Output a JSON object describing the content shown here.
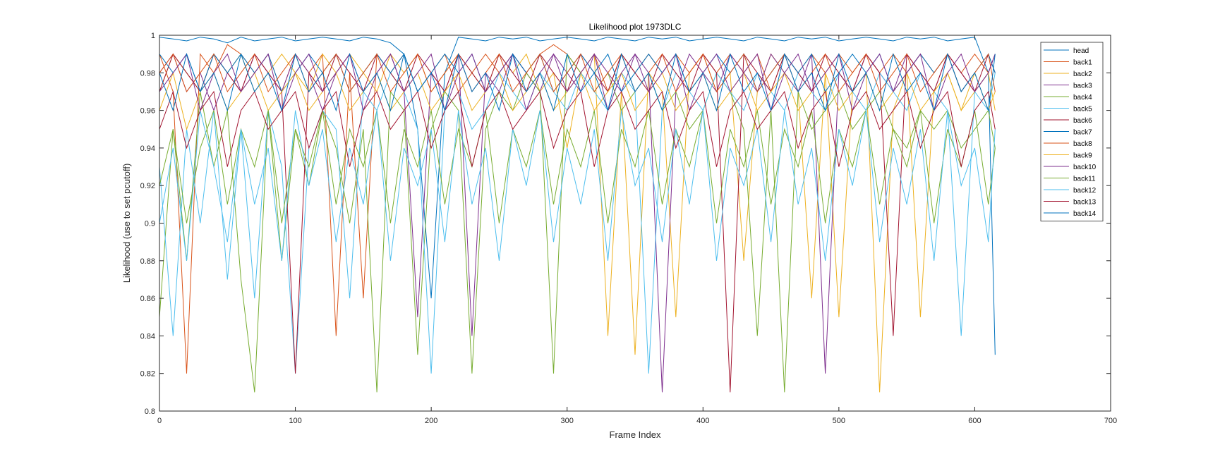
{
  "chart_data": {
    "type": "line",
    "title": "Likelihood plot 1973DLC",
    "xlabel": "Frame Index",
    "ylabel": "Likelihood (use to set pcutoff)",
    "xlim": [
      0,
      700
    ],
    "ylim": [
      0.8,
      1
    ],
    "xticks": [
      "0",
      "100",
      "200",
      "300",
      "400",
      "500",
      "600",
      "700"
    ],
    "yticks": [
      "0.8",
      "0.82",
      "0.84",
      "0.86",
      "0.88",
      "0.9",
      "0.92",
      "0.94",
      "0.96",
      "0.98",
      "1"
    ],
    "legend_position": "top-right",
    "grid": false,
    "x": [
      0,
      10,
      20,
      30,
      40,
      50,
      60,
      70,
      80,
      90,
      100,
      110,
      120,
      130,
      140,
      150,
      160,
      170,
      180,
      190,
      200,
      210,
      220,
      230,
      240,
      250,
      260,
      270,
      280,
      290,
      300,
      310,
      320,
      330,
      340,
      350,
      360,
      370,
      380,
      390,
      400,
      410,
      420,
      430,
      440,
      450,
      460,
      470,
      480,
      490,
      500,
      510,
      520,
      530,
      540,
      550,
      560,
      570,
      580,
      590,
      600,
      610,
      615
    ],
    "series": [
      {
        "name": "head",
        "color": "#0072BD",
        "values": [
          0.999,
          0.998,
          0.997,
          0.999,
          0.998,
          0.996,
          0.999,
          0.997,
          0.998,
          0.999,
          0.997,
          0.998,
          0.999,
          0.998,
          0.997,
          0.999,
          0.998,
          0.996,
          0.99,
          0.95,
          0.86,
          0.98,
          0.999,
          0.998,
          0.997,
          0.999,
          0.998,
          0.999,
          0.997,
          0.998,
          0.999,
          0.998,
          0.997,
          0.999,
          0.998,
          0.997,
          0.999,
          0.998,
          0.999,
          0.997,
          0.998,
          0.999,
          0.998,
          0.997,
          0.999,
          0.998,
          0.997,
          0.999,
          0.998,
          0.999,
          0.997,
          0.998,
          0.999,
          0.998,
          0.997,
          0.999,
          0.998,
          0.999,
          0.997,
          0.998,
          0.999,
          0.98,
          0.83
        ]
      },
      {
        "name": "back1",
        "color": "#D95319",
        "values": [
          0.99,
          0.97,
          0.82,
          0.99,
          0.98,
          0.995,
          0.99,
          0.98,
          0.99,
          0.97,
          0.99,
          0.98,
          0.99,
          0.84,
          0.98,
          0.86,
          0.99,
          0.98,
          0.99,
          0.97,
          0.98,
          0.99,
          0.97,
          0.98,
          0.99,
          0.98,
          0.99,
          0.98,
          0.99,
          0.995,
          0.99,
          0.98,
          0.99,
          0.97,
          0.99,
          0.98,
          0.99,
          0.98,
          0.99,
          0.98,
          0.99,
          0.98,
          0.99,
          0.98,
          0.99,
          0.97,
          0.99,
          0.98,
          0.99,
          0.98,
          0.99,
          0.98,
          0.99,
          0.98,
          0.99,
          0.98,
          0.99,
          0.98,
          0.99,
          0.98,
          0.99,
          0.98,
          0.99
        ]
      },
      {
        "name": "back2",
        "color": "#EDB120",
        "values": [
          0.97,
          0.99,
          0.98,
          0.97,
          0.99,
          0.98,
          0.99,
          0.97,
          0.98,
          0.99,
          0.98,
          0.97,
          0.99,
          0.98,
          0.99,
          0.98,
          0.97,
          0.99,
          0.98,
          0.99,
          0.97,
          0.98,
          0.99,
          0.98,
          0.97,
          0.99,
          0.98,
          0.99,
          0.97,
          0.98,
          0.94,
          0.98,
          0.99,
          0.84,
          0.97,
          0.83,
          0.98,
          0.97,
          0.85,
          0.98,
          0.99,
          0.97,
          0.98,
          0.88,
          0.97,
          0.99,
          0.98,
          0.97,
          0.86,
          0.98,
          0.85,
          0.97,
          0.98,
          0.81,
          0.96,
          0.98,
          0.85,
          0.97,
          0.98,
          0.96,
          0.98,
          0.96,
          0.97
        ]
      },
      {
        "name": "back3",
        "color": "#7E2F8E",
        "values": [
          0.98,
          0.99,
          0.97,
          0.98,
          0.96,
          0.98,
          0.97,
          0.99,
          0.98,
          0.97,
          0.99,
          0.98,
          0.96,
          0.98,
          0.99,
          0.97,
          0.98,
          0.99,
          0.97,
          0.85,
          0.98,
          0.97,
          0.99,
          0.84,
          0.98,
          0.97,
          0.99,
          0.98,
          0.97,
          0.99,
          0.98,
          0.97,
          0.99,
          0.98,
          0.97,
          0.99,
          0.98,
          0.81,
          0.97,
          0.99,
          0.98,
          0.97,
          0.99,
          0.98,
          0.97,
          0.99,
          0.98,
          0.97,
          0.99,
          0.82,
          0.98,
          0.97,
          0.99,
          0.98,
          0.97,
          0.99,
          0.98,
          0.97,
          0.99,
          0.98,
          0.97,
          0.98,
          0.99
        ]
      },
      {
        "name": "back4",
        "color": "#77AC30",
        "values": [
          0.85,
          0.95,
          0.88,
          0.97,
          0.93,
          0.96,
          0.87,
          0.81,
          0.96,
          0.88,
          0.95,
          0.92,
          0.96,
          0.94,
          0.9,
          0.95,
          0.81,
          0.97,
          0.96,
          0.83,
          0.95,
          0.97,
          0.96,
          0.82,
          0.95,
          0.97,
          0.96,
          0.98,
          0.97,
          0.82,
          0.99,
          0.98,
          0.97,
          0.98,
          0.96,
          0.97,
          0.98,
          0.96,
          0.97,
          0.95,
          0.96,
          0.98,
          0.97,
          0.95,
          0.84,
          0.96,
          0.81,
          0.97,
          0.95,
          0.96,
          0.97,
          0.95,
          0.96,
          0.97,
          0.95,
          0.94,
          0.96,
          0.95,
          0.96,
          0.94,
          0.95,
          0.96,
          0.94
        ]
      },
      {
        "name": "back5",
        "color": "#4DBEEE",
        "values": [
          0.93,
          0.84,
          0.95,
          0.9,
          0.96,
          0.87,
          0.95,
          0.86,
          0.96,
          0.93,
          0.82,
          0.94,
          0.96,
          0.95,
          0.86,
          0.97,
          0.96,
          0.98,
          0.97,
          0.95,
          0.82,
          0.96,
          0.97,
          0.95,
          0.96,
          0.98,
          0.97,
          0.96,
          0.98,
          0.97,
          0.96,
          0.98,
          0.97,
          0.96,
          0.98,
          0.97,
          0.82,
          0.96,
          0.98,
          0.97,
          0.96,
          0.98,
          0.97,
          0.96,
          0.98,
          0.97,
          0.96,
          0.98,
          0.97,
          0.96,
          0.98,
          0.97,
          0.96,
          0.98,
          0.97,
          0.96,
          0.98,
          0.97,
          0.96,
          0.84,
          0.97,
          0.96,
          0.98
        ]
      },
      {
        "name": "back6",
        "color": "#A2142F",
        "values": [
          0.97,
          0.99,
          0.98,
          0.97,
          0.99,
          0.98,
          0.97,
          0.99,
          0.98,
          0.97,
          0.82,
          0.98,
          0.97,
          0.99,
          0.98,
          0.97,
          0.99,
          0.98,
          0.97,
          0.99,
          0.98,
          0.97,
          0.99,
          0.98,
          0.97,
          0.99,
          0.98,
          0.97,
          0.99,
          0.98,
          0.97,
          0.99,
          0.98,
          0.97,
          0.99,
          0.98,
          0.97,
          0.99,
          0.98,
          0.97,
          0.99,
          0.98,
          0.81,
          0.99,
          0.98,
          0.97,
          0.99,
          0.98,
          0.97,
          0.99,
          0.98,
          0.97,
          0.99,
          0.98,
          0.84,
          0.99,
          0.98,
          0.97,
          0.99,
          0.98,
          0.97,
          0.99,
          0.98
        ]
      },
      {
        "name": "back7",
        "color": "#0072BD",
        "values": [
          0.99,
          0.98,
          0.99,
          0.97,
          0.99,
          0.98,
          0.99,
          0.98,
          0.99,
          0.97,
          0.98,
          0.99,
          0.98,
          0.99,
          0.97,
          0.98,
          0.99,
          0.98,
          0.99,
          0.97,
          0.98,
          0.99,
          0.98,
          0.99,
          0.97,
          0.98,
          0.99,
          0.98,
          0.99,
          0.97,
          0.98,
          0.99,
          0.98,
          0.99,
          0.97,
          0.98,
          0.99,
          0.98,
          0.99,
          0.97,
          0.98,
          0.99,
          0.98,
          0.99,
          0.97,
          0.98,
          0.99,
          0.98,
          0.99,
          0.97,
          0.98,
          0.99,
          0.98,
          0.99,
          0.97,
          0.98,
          0.99,
          0.98,
          0.99,
          0.97,
          0.98,
          0.99,
          0.98
        ]
      },
      {
        "name": "back8",
        "color": "#D95319",
        "values": [
          0.98,
          0.99,
          0.97,
          0.98,
          0.99,
          0.97,
          0.98,
          0.99,
          0.97,
          0.98,
          0.99,
          0.97,
          0.98,
          0.99,
          0.97,
          0.98,
          0.99,
          0.97,
          0.98,
          0.99,
          0.97,
          0.98,
          0.99,
          0.97,
          0.98,
          0.99,
          0.97,
          0.98,
          0.99,
          0.97,
          0.98,
          0.99,
          0.97,
          0.98,
          0.99,
          0.97,
          0.98,
          0.99,
          0.97,
          0.98,
          0.99,
          0.97,
          0.98,
          0.99,
          0.97,
          0.98,
          0.99,
          0.97,
          0.98,
          0.99,
          0.97,
          0.98,
          0.99,
          0.97,
          0.98,
          0.99,
          0.97,
          0.98,
          0.99,
          0.97,
          0.98,
          0.99,
          0.97
        ]
      },
      {
        "name": "back9",
        "color": "#EDB120",
        "values": [
          0.96,
          0.98,
          0.95,
          0.97,
          0.98,
          0.96,
          0.97,
          0.98,
          0.96,
          0.97,
          0.98,
          0.96,
          0.97,
          0.98,
          0.96,
          0.97,
          0.98,
          0.96,
          0.97,
          0.98,
          0.96,
          0.97,
          0.98,
          0.96,
          0.97,
          0.98,
          0.96,
          0.97,
          0.98,
          0.96,
          0.97,
          0.98,
          0.96,
          0.97,
          0.98,
          0.96,
          0.97,
          0.98,
          0.96,
          0.97,
          0.98,
          0.96,
          0.97,
          0.98,
          0.96,
          0.97,
          0.98,
          0.96,
          0.97,
          0.98,
          0.96,
          0.97,
          0.98,
          0.96,
          0.97,
          0.98,
          0.96,
          0.97,
          0.98,
          0.96,
          0.97,
          0.98,
          0.96
        ]
      },
      {
        "name": "back10",
        "color": "#7E2F8E",
        "values": [
          0.97,
          0.98,
          0.99,
          0.96,
          0.98,
          0.99,
          0.97,
          0.98,
          0.99,
          0.96,
          0.98,
          0.99,
          0.97,
          0.98,
          0.99,
          0.96,
          0.98,
          0.99,
          0.97,
          0.98,
          0.99,
          0.96,
          0.98,
          0.99,
          0.97,
          0.98,
          0.99,
          0.96,
          0.98,
          0.99,
          0.97,
          0.98,
          0.99,
          0.96,
          0.98,
          0.99,
          0.97,
          0.98,
          0.99,
          0.96,
          0.98,
          0.99,
          0.97,
          0.98,
          0.99,
          0.96,
          0.98,
          0.99,
          0.97,
          0.98,
          0.99,
          0.96,
          0.98,
          0.99,
          0.97,
          0.98,
          0.99,
          0.96,
          0.98,
          0.99,
          0.97,
          0.98,
          0.99
        ]
      },
      {
        "name": "back11",
        "color": "#77AC30",
        "values": [
          0.92,
          0.95,
          0.9,
          0.94,
          0.96,
          0.91,
          0.95,
          0.93,
          0.96,
          0.9,
          0.95,
          0.93,
          0.96,
          0.91,
          0.95,
          0.93,
          0.96,
          0.9,
          0.95,
          0.93,
          0.96,
          0.91,
          0.95,
          0.93,
          0.96,
          0.9,
          0.95,
          0.93,
          0.96,
          0.91,
          0.95,
          0.93,
          0.96,
          0.9,
          0.95,
          0.93,
          0.96,
          0.91,
          0.95,
          0.93,
          0.96,
          0.9,
          0.95,
          0.93,
          0.96,
          0.91,
          0.95,
          0.93,
          0.96,
          0.9,
          0.95,
          0.93,
          0.96,
          0.91,
          0.95,
          0.93,
          0.96,
          0.9,
          0.95,
          0.93,
          0.96,
          0.91,
          0.94
        ]
      },
      {
        "name": "back12",
        "color": "#4DBEEE",
        "values": [
          0.9,
          0.94,
          0.88,
          0.96,
          0.93,
          0.89,
          0.95,
          0.91,
          0.94,
          0.88,
          0.96,
          0.92,
          0.95,
          0.89,
          0.94,
          0.91,
          0.96,
          0.88,
          0.94,
          0.92,
          0.95,
          0.89,
          0.96,
          0.91,
          0.94,
          0.88,
          0.95,
          0.92,
          0.96,
          0.89,
          0.94,
          0.91,
          0.95,
          0.88,
          0.96,
          0.92,
          0.94,
          0.89,
          0.95,
          0.91,
          0.96,
          0.88,
          0.94,
          0.92,
          0.95,
          0.89,
          0.96,
          0.91,
          0.94,
          0.88,
          0.95,
          0.92,
          0.96,
          0.89,
          0.94,
          0.91,
          0.95,
          0.88,
          0.96,
          0.92,
          0.94,
          0.89,
          0.95
        ]
      },
      {
        "name": "back13",
        "color": "#A2142F",
        "values": [
          0.95,
          0.97,
          0.94,
          0.96,
          0.97,
          0.93,
          0.96,
          0.97,
          0.95,
          0.96,
          0.97,
          0.94,
          0.96,
          0.97,
          0.93,
          0.96,
          0.97,
          0.95,
          0.96,
          0.97,
          0.94,
          0.96,
          0.97,
          0.93,
          0.96,
          0.97,
          0.95,
          0.96,
          0.97,
          0.94,
          0.96,
          0.97,
          0.93,
          0.96,
          0.97,
          0.95,
          0.96,
          0.97,
          0.94,
          0.96,
          0.97,
          0.93,
          0.96,
          0.97,
          0.95,
          0.96,
          0.97,
          0.94,
          0.96,
          0.97,
          0.93,
          0.96,
          0.97,
          0.95,
          0.96,
          0.97,
          0.94,
          0.96,
          0.97,
          0.93,
          0.96,
          0.97,
          0.95
        ]
      },
      {
        "name": "back14",
        "color": "#0072BD",
        "values": [
          0.98,
          0.96,
          0.99,
          0.97,
          0.98,
          0.96,
          0.99,
          0.97,
          0.98,
          0.96,
          0.99,
          0.97,
          0.98,
          0.96,
          0.99,
          0.97,
          0.98,
          0.96,
          0.99,
          0.97,
          0.98,
          0.96,
          0.99,
          0.97,
          0.98,
          0.96,
          0.99,
          0.97,
          0.98,
          0.96,
          0.99,
          0.97,
          0.98,
          0.96,
          0.99,
          0.97,
          0.98,
          0.96,
          0.99,
          0.97,
          0.98,
          0.96,
          0.99,
          0.97,
          0.98,
          0.96,
          0.99,
          0.97,
          0.98,
          0.96,
          0.99,
          0.97,
          0.98,
          0.96,
          0.99,
          0.97,
          0.98,
          0.96,
          0.99,
          0.97,
          0.98,
          0.96,
          0.99
        ]
      }
    ]
  }
}
